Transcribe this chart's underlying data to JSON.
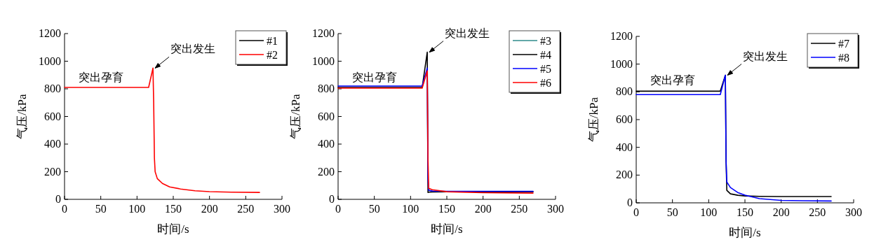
{
  "chart_data": [
    {
      "type": "line",
      "xlabel": "时间/s",
      "ylabel": "气压/kPa",
      "xlim": [
        0,
        300
      ],
      "ylim": [
        0,
        1200
      ],
      "xticks": [
        0,
        50,
        100,
        150,
        200,
        250,
        300
      ],
      "yticks": [
        0,
        200,
        400,
        600,
        800,
        1000,
        1200
      ],
      "grid": false,
      "legend": "top right",
      "marker": "none",
      "line_style": "solid",
      "x": [
        0,
        20,
        40,
        60,
        80,
        100,
        116,
        122,
        123,
        124,
        125,
        128,
        135,
        145,
        160,
        180,
        200,
        230,
        269
      ],
      "series": [
        {
          "name": "#1",
          "color": "#000000",
          "values": [
            null,
            null,
            null,
            null,
            null,
            null,
            null,
            null,
            null,
            null,
            null,
            null,
            null,
            null,
            null,
            null,
            null,
            null,
            null
          ]
        },
        {
          "name": "#2",
          "color": "#ff0000",
          "values": [
            810,
            810,
            810,
            810,
            810,
            810,
            810,
            950,
            700,
            300,
            200,
            150,
            115,
            90,
            75,
            62,
            56,
            52,
            50
          ]
        }
      ],
      "annotations": [
        "突出孕育",
        "突出发生"
      ]
    },
    {
      "type": "line",
      "xlabel": "时间/s",
      "ylabel": "气压/kPa",
      "xlim": [
        0,
        300
      ],
      "ylim": [
        0,
        1200
      ],
      "xticks": [
        0,
        50,
        100,
        150,
        200,
        250,
        300
      ],
      "yticks": [
        0,
        200,
        400,
        600,
        800,
        1000,
        1200
      ],
      "grid": false,
      "legend": "top right",
      "marker": "none",
      "line_style": "solid",
      "x": [
        0,
        20,
        40,
        60,
        80,
        100,
        116,
        123,
        124,
        125,
        130,
        150,
        200,
        269
      ],
      "series": [
        {
          "name": "#3",
          "color": "#2e8b8b",
          "values": [
            null,
            null,
            null,
            null,
            null,
            null,
            null,
            null,
            null,
            null,
            null,
            null,
            null,
            null
          ]
        },
        {
          "name": "#4",
          "color": "#000000",
          "values": [
            810,
            810,
            810,
            810,
            810,
            810,
            810,
            1065,
            50,
            52,
            54,
            55,
            55,
            55
          ]
        },
        {
          "name": "#5",
          "color": "#0000ff",
          "values": [
            820,
            820,
            820,
            820,
            820,
            820,
            820,
            950,
            150,
            65,
            60,
            58,
            58,
            58
          ]
        },
        {
          "name": "#6",
          "color": "#ff0000",
          "values": [
            805,
            805,
            805,
            805,
            805,
            805,
            805,
            930,
            300,
            80,
            70,
            55,
            48,
            45
          ]
        }
      ],
      "annotations": [
        "突出孕育",
        "突出发生"
      ]
    },
    {
      "type": "line",
      "xlabel": "时间/s",
      "ylabel": "气压/kPa",
      "xlim": [
        0,
        300
      ],
      "ylim": [
        0,
        1200
      ],
      "xticks": [
        0,
        50,
        100,
        150,
        200,
        250,
        300
      ],
      "yticks": [
        0,
        200,
        400,
        600,
        800,
        1000,
        1200
      ],
      "grid": false,
      "legend": "top right",
      "marker": "none",
      "line_style": "solid",
      "x": [
        0,
        20,
        40,
        60,
        80,
        100,
        116,
        123,
        124,
        125,
        130,
        140,
        150,
        170,
        200,
        230,
        269
      ],
      "series": [
        {
          "name": "#7",
          "color": "#000000",
          "values": [
            805,
            805,
            805,
            805,
            805,
            805,
            805,
            920,
            300,
            90,
            65,
            55,
            50,
            47,
            45,
            45,
            45
          ]
        },
        {
          "name": "#8",
          "color": "#0000ff",
          "values": [
            780,
            780,
            780,
            780,
            780,
            780,
            780,
            920,
            300,
            150,
            110,
            75,
            55,
            30,
            18,
            15,
            13
          ]
        }
      ],
      "annotations": [
        "突出孕育",
        "突出发生"
      ]
    }
  ]
}
